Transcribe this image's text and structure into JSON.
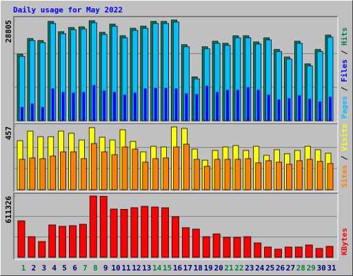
{
  "chart_data": [
    {
      "type": "bar",
      "title": "Daily usage for May 2022",
      "ylim": [
        0,
        28805
      ],
      "yticks": [
        28805
      ],
      "grid": true,
      "legend_separator": " / ",
      "series": [
        {
          "name": "Pages",
          "color": "#00c0ff",
          "values": [
            18420,
            22920,
            22330,
            27820,
            24880,
            26060,
            26250,
            28020,
            24690,
            27040,
            23710,
            25860,
            26450,
            27820,
            27820,
            28210,
            21160,
            11950,
            20570,
            22140,
            21550,
            23710,
            23710,
            21940,
            23120,
            19790,
            17630,
            22140,
            15670,
            19790,
            23900
          ]
        },
        {
          "name": "Files",
          "color": "#0000ff",
          "values": [
            3920,
            4900,
            3920,
            9212,
            8232,
            8036,
            8232,
            10192,
            8624,
            8232,
            7448,
            8036,
            9212,
            9408,
            9408,
            9212,
            7840,
            7644,
            10003,
            8232,
            8820,
            8820,
            9604,
            8820,
            7448,
            6076,
            6468,
            7252,
            6272,
            5488,
            6860
          ]
        },
        {
          "name": "Hits",
          "color": "#00805c",
          "values": [
            19010,
            23510,
            22925,
            28410,
            25475,
            26650,
            26845,
            28610,
            25280,
            27630,
            24300,
            26450,
            27040,
            28410,
            28410,
            28805,
            21750,
            12540,
            21160,
            22730,
            22140,
            24300,
            24300,
            22530,
            23710,
            20380,
            18220,
            22730,
            16260,
            20380,
            24490
          ]
        }
      ]
    },
    {
      "type": "bar",
      "ylim": [
        0,
        457
      ],
      "yticks": [
        457
      ],
      "grid": true,
      "legend_separator": " / ",
      "series": [
        {
          "name": "Sites",
          "color": "#ff8000",
          "values": [
            219,
            229,
            224,
            243,
            273,
            273,
            224,
            333,
            273,
            253,
            308,
            293,
            199,
            224,
            229,
            308,
            328,
            219,
            169,
            219,
            219,
            219,
            224,
            194,
            209,
            199,
            184,
            209,
            219,
            204,
            189
          ]
        },
        {
          "name": "Visits",
          "color": "#ffff00",
          "values": [
            353,
            422,
            382,
            382,
            422,
            407,
            358,
            447,
            378,
            358,
            432,
            348,
            273,
            313,
            308,
            452,
            442,
            293,
            213,
            283,
            308,
            318,
            283,
            313,
            248,
            288,
            259,
            283,
            313,
            288,
            263
          ]
        }
      ]
    },
    {
      "type": "bar",
      "ylim": [
        0,
        611326
      ],
      "yticks": [
        611326
      ],
      "grid": true,
      "categories": [
        "1",
        "2",
        "3",
        "4",
        "5",
        "6",
        "7",
        "8",
        "9",
        "10",
        "11",
        "12",
        "13",
        "14",
        "15",
        "16",
        "17",
        "18",
        "19",
        "20",
        "21",
        "22",
        "23",
        "24",
        "25",
        "26",
        "27",
        "28",
        "29",
        "30",
        "31"
      ],
      "category_colors": [
        "#008040",
        "#000080",
        "#000080",
        "#000080",
        "#000080",
        "#000080",
        "#008040",
        "#008040",
        "#000080",
        "#000080",
        "#000080",
        "#000080",
        "#000080",
        "#008040",
        "#008040",
        "#000080",
        "#000080",
        "#000080",
        "#000080",
        "#000080",
        "#008040",
        "#008040",
        "#000080",
        "#000080",
        "#000080",
        "#000080",
        "#000080",
        "#008040",
        "#008040",
        "#000080",
        "#000080"
      ],
      "series": [
        {
          "name": "KBytes",
          "color": "#ff0000",
          "values": [
            364057,
            206070,
            157987,
            322843,
            309105,
            315974,
            329712,
            611326,
            608000,
            480830,
            478000,
            494568,
            508306,
            501437,
            494000,
            405271,
            295367,
            281629,
            206070,
            233546,
            199201,
            199000,
            206000,
            144249,
            103035,
            82428,
            103000,
            103500,
            123642,
            89297,
            109904
          ]
        }
      ]
    }
  ]
}
